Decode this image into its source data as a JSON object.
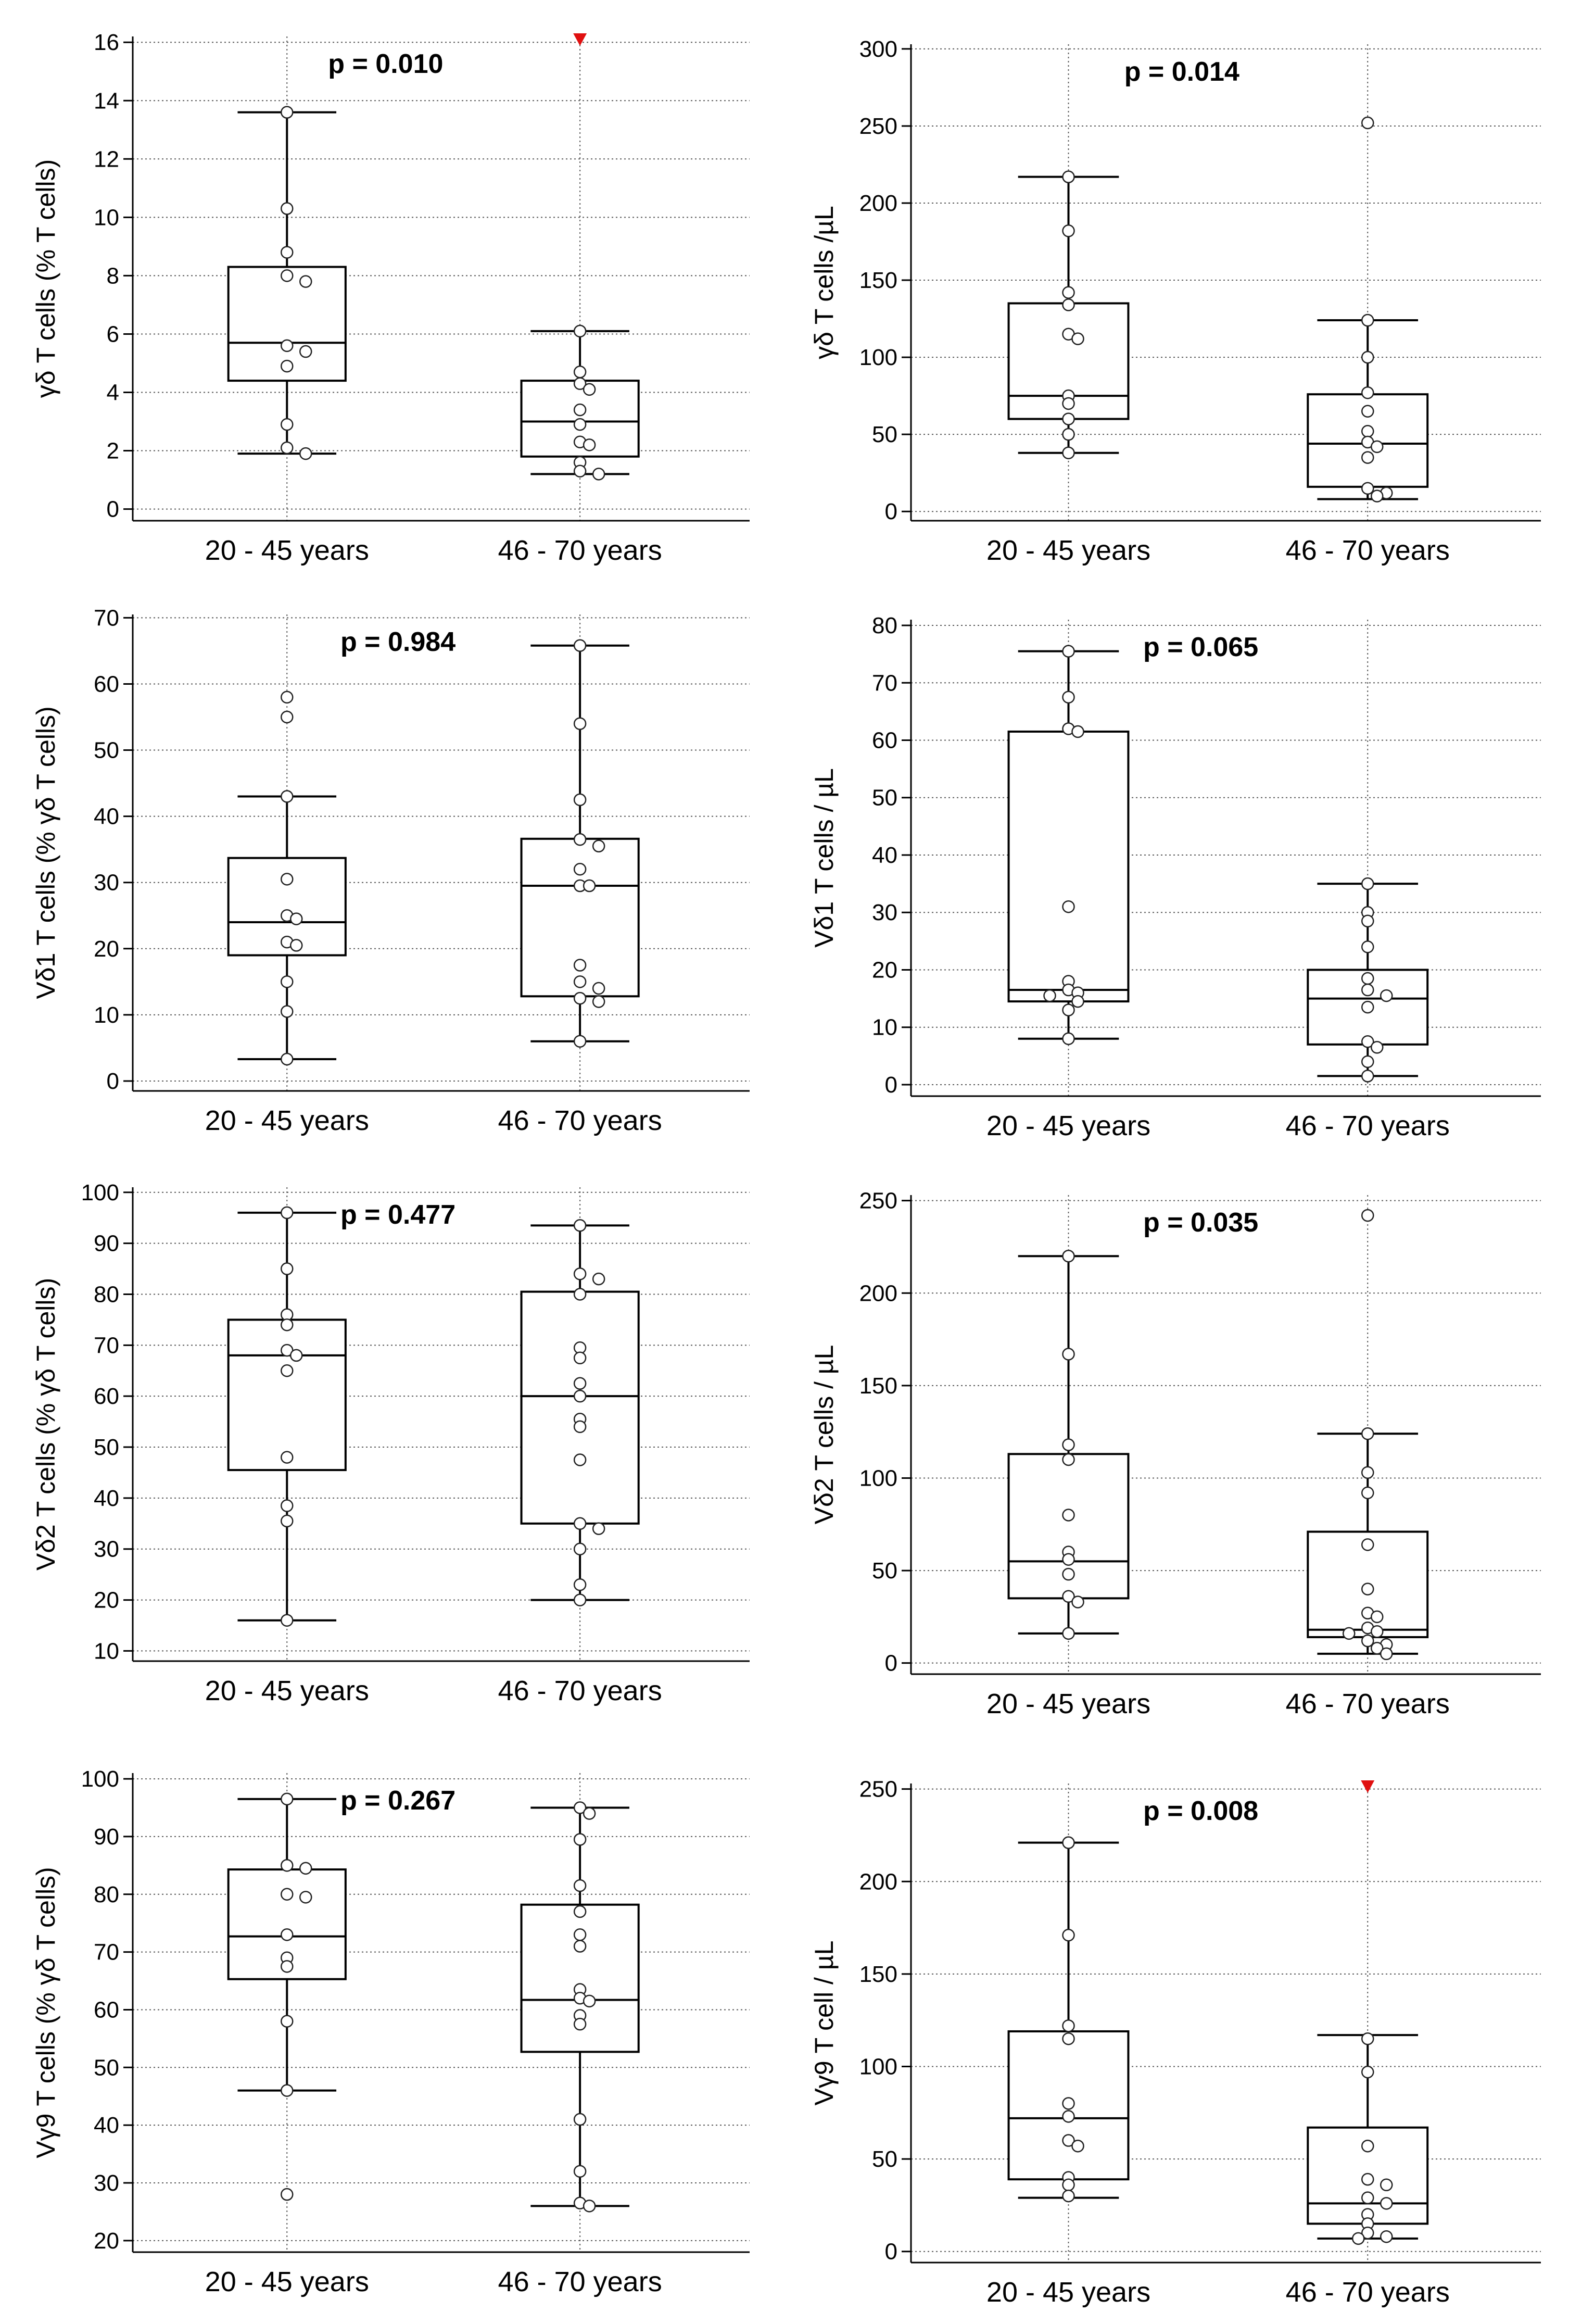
{
  "chart_data": [
    {
      "type": "box",
      "ylabel": "γδ T cells (% T cells)",
      "categories": [
        "20 - 45 years",
        "46 - 70 years"
      ],
      "p_value": "p = 0.010",
      "ylim": [
        -0.4,
        16.2
      ],
      "yticks": [
        0,
        2,
        4,
        6,
        8,
        10,
        12,
        14,
        16
      ],
      "groups": [
        {
          "name": "20 - 45 years",
          "whisker_low": 1.9,
          "q1": 4.4,
          "median": 5.7,
          "q3": 8.3,
          "whisker_high": 13.6,
          "points": [
            13.6,
            10.3,
            8.8,
            8.0,
            7.8,
            5.6,
            5.4,
            4.9,
            2.9,
            2.1,
            1.9
          ],
          "outlier_above_range": false
        },
        {
          "name": "46 - 70 years",
          "whisker_low": 1.2,
          "q1": 1.8,
          "median": 3.0,
          "q3": 4.4,
          "whisker_high": 6.1,
          "points": [
            6.1,
            4.7,
            4.3,
            4.1,
            3.4,
            2.9,
            2.3,
            2.2,
            1.6,
            1.3,
            1.2
          ],
          "outlier_above_range": true
        }
      ]
    },
    {
      "type": "box",
      "ylabel": "γδ T cells /µL",
      "categories": [
        "20 - 45 years",
        "46 - 70 years"
      ],
      "p_value": "p = 0.014",
      "ylim": [
        -6,
        303
      ],
      "yticks": [
        0,
        50,
        100,
        150,
        200,
        250,
        300
      ],
      "groups": [
        {
          "name": "20 - 45 years",
          "whisker_low": 38,
          "q1": 60,
          "median": 75,
          "q3": 135,
          "whisker_high": 217,
          "points": [
            217,
            182,
            142,
            134,
            115,
            112,
            75,
            70,
            60,
            50,
            38
          ],
          "outlier_above_range": false
        },
        {
          "name": "46 - 70 years",
          "whisker_low": 8,
          "q1": 16,
          "median": 44,
          "q3": 76,
          "whisker_high": 124,
          "points": [
            252,
            124,
            100,
            77,
            65,
            52,
            45,
            42,
            35,
            15,
            12,
            10
          ],
          "outlier_above_range": false
        }
      ]
    },
    {
      "type": "box",
      "ylabel": "Vδ1 T cells (% γδ T cells)",
      "categories": [
        "20 - 45 years",
        "46 - 70 years"
      ],
      "p_value": "p = 0.984",
      "ylim": [
        -1.5,
        70.5
      ],
      "yticks": [
        0,
        10,
        20,
        30,
        40,
        50,
        60,
        70
      ],
      "groups": [
        {
          "name": "20 - 45 years",
          "whisker_low": 3.3,
          "q1": 19,
          "median": 24,
          "q3": 33.7,
          "whisker_high": 43,
          "points": [
            58,
            55,
            43,
            30.5,
            25,
            24.5,
            21,
            20.5,
            15,
            10.5,
            3.3
          ],
          "outlier_above_range": false
        },
        {
          "name": "46 - 70 years",
          "whisker_low": 6,
          "q1": 12.8,
          "median": 29.5,
          "q3": 36.6,
          "whisker_high": 65.8,
          "points": [
            65.8,
            54,
            42.5,
            36.5,
            35.5,
            32,
            29.5,
            29.5,
            17.5,
            15,
            14,
            12.5,
            12,
            6
          ],
          "outlier_above_range": false
        }
      ]
    },
    {
      "type": "box",
      "ylabel": "Vδ1 T cells / µL",
      "categories": [
        "20 - 45 years",
        "46 - 70 years"
      ],
      "p_value": "p = 0.065",
      "ylim": [
        -2,
        81
      ],
      "yticks": [
        0,
        10,
        20,
        30,
        40,
        50,
        60,
        70,
        80
      ],
      "groups": [
        {
          "name": "20 - 45 years",
          "whisker_low": 8,
          "q1": 14.5,
          "median": 16.5,
          "q3": 61.5,
          "whisker_high": 75.5,
          "points": [
            75.5,
            67.5,
            62,
            61.5,
            31,
            18,
            16.5,
            16,
            15.5,
            14.5,
            13,
            8
          ],
          "outlier_above_range": false
        },
        {
          "name": "46 - 70 years",
          "whisker_low": 1.5,
          "q1": 7,
          "median": 15,
          "q3": 20,
          "whisker_high": 35,
          "points": [
            35,
            30,
            28.5,
            24,
            18.5,
            16.5,
            15.5,
            13.5,
            7.5,
            6.5,
            4,
            1.5
          ],
          "outlier_above_range": false
        }
      ]
    },
    {
      "type": "box",
      "ylabel": "Vδ2 T cells (% γδ T cells)",
      "categories": [
        "20 - 45 years",
        "46 - 70 years"
      ],
      "p_value": "p = 0.477",
      "ylim": [
        8,
        101
      ],
      "yticks": [
        10,
        20,
        30,
        40,
        50,
        60,
        70,
        80,
        90,
        100
      ],
      "groups": [
        {
          "name": "20 - 45 years",
          "whisker_low": 16,
          "q1": 45.5,
          "median": 68,
          "q3": 75,
          "whisker_high": 96,
          "points": [
            96,
            85,
            76,
            74,
            69,
            68,
            65,
            48,
            38.5,
            35.5,
            16
          ],
          "outlier_above_range": false
        },
        {
          "name": "46 - 70 years",
          "whisker_low": 20,
          "q1": 35,
          "median": 60,
          "q3": 80.5,
          "whisker_high": 93.5,
          "points": [
            93.5,
            84,
            83,
            80,
            69.5,
            67.5,
            62.5,
            60,
            55.5,
            54,
            47.5,
            35,
            34,
            30,
            23,
            20
          ],
          "outlier_above_range": false
        }
      ]
    },
    {
      "type": "box",
      "ylabel": "Vδ2 T cells / µL",
      "categories": [
        "20 - 45 years",
        "46 - 70 years"
      ],
      "p_value": "p = 0.035",
      "ylim": [
        -6,
        253
      ],
      "yticks": [
        0,
        50,
        100,
        150,
        200,
        250
      ],
      "groups": [
        {
          "name": "20 - 45 years",
          "whisker_low": 16,
          "q1": 35,
          "median": 55,
          "q3": 113,
          "whisker_high": 220,
          "points": [
            220,
            167,
            118,
            110,
            80,
            60,
            56,
            48,
            36,
            33,
            16
          ],
          "outlier_above_range": false
        },
        {
          "name": "46 - 70 years",
          "whisker_low": 5,
          "q1": 14,
          "median": 18,
          "q3": 71,
          "whisker_high": 124,
          "points": [
            242,
            124,
            103,
            92,
            64,
            40,
            27,
            25,
            19,
            17,
            16,
            12,
            10,
            8,
            5
          ],
          "outlier_above_range": false
        }
      ]
    },
    {
      "type": "box",
      "ylabel": "Vγ9 T cells (% γδ T cells)",
      "categories": [
        "20 - 45 years",
        "46 - 70 years"
      ],
      "p_value": "p = 0.267",
      "ylim": [
        18,
        101
      ],
      "yticks": [
        20,
        30,
        40,
        50,
        60,
        70,
        80,
        90,
        100
      ],
      "groups": [
        {
          "name": "20 - 45 years",
          "whisker_low": 46,
          "q1": 65.3,
          "median": 72.7,
          "q3": 84.3,
          "whisker_high": 96.5,
          "points": [
            96.5,
            85,
            84.5,
            80,
            79.5,
            73,
            69,
            67.5,
            58,
            46,
            28
          ],
          "outlier_above_range": false
        },
        {
          "name": "46 - 70 years",
          "whisker_low": 26,
          "q1": 52.7,
          "median": 61.7,
          "q3": 78.2,
          "whisker_high": 95,
          "points": [
            95,
            94,
            89.5,
            81.5,
            77,
            73,
            71,
            63.5,
            62,
            61.5,
            59,
            57.5,
            41,
            32,
            26.5,
            26
          ],
          "outlier_above_range": false
        }
      ]
    },
    {
      "type": "box",
      "ylabel": "Vγ9 T cell / µL",
      "categories": [
        "20 - 45 years",
        "46 - 70 years"
      ],
      "p_value": "p = 0.008",
      "ylim": [
        -6,
        253
      ],
      "yticks": [
        0,
        50,
        100,
        150,
        200,
        250
      ],
      "groups": [
        {
          "name": "20 - 45 years",
          "whisker_low": 29,
          "q1": 39,
          "median": 72,
          "q3": 119,
          "whisker_high": 221,
          "points": [
            221,
            171,
            122,
            115,
            80,
            73,
            60,
            57,
            40,
            36,
            30
          ],
          "outlier_above_range": false
        },
        {
          "name": "46 - 70 years",
          "whisker_low": 7,
          "q1": 15,
          "median": 26,
          "q3": 67,
          "whisker_high": 117,
          "points": [
            115,
            97,
            57,
            39,
            36,
            29,
            26,
            20,
            15,
            10,
            8,
            7
          ],
          "outlier_above_range": true
        }
      ]
    }
  ],
  "colors": {
    "axis": "#000000",
    "grid": "#5a5a5a",
    "box_fill": "#ffffff",
    "point_fill": "#ffffff",
    "outlier_marker": "#e01010"
  }
}
